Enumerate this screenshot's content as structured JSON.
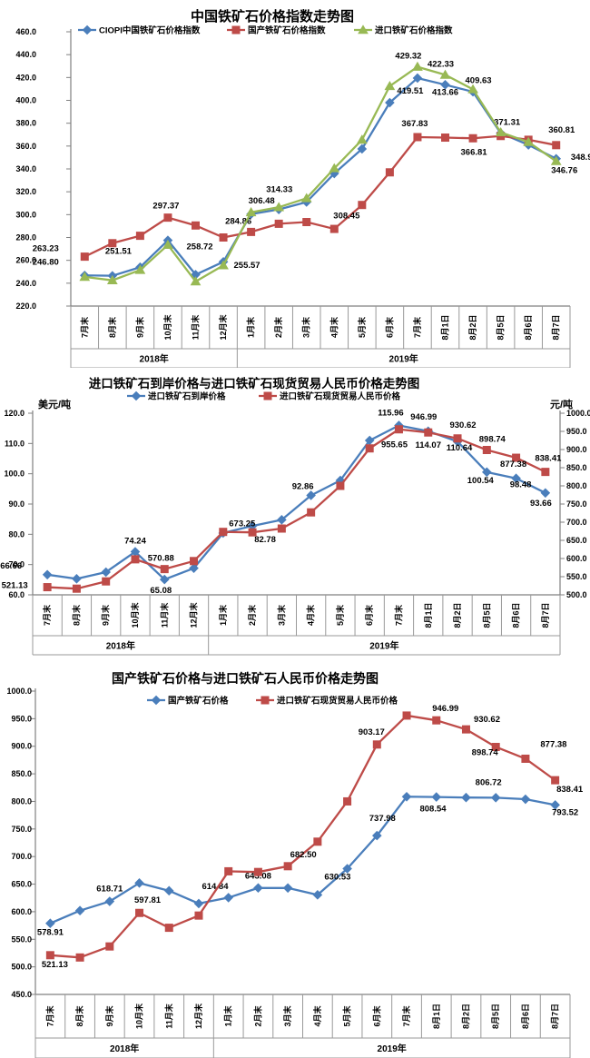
{
  "page": {
    "background": "#FFFFFF",
    "axis_color": "#808080",
    "cell_border_color": "#999999",
    "label_color": "#000000"
  },
  "chart_data": [
    {
      "type": "line",
      "title": "中国铁矿石价格指数走势图",
      "categories": [
        "7月末",
        "8月末",
        "9月末",
        "10月末",
        "11月末",
        "12月末",
        "1月末",
        "2月末",
        "3月末",
        "4月末",
        "5月末",
        "6月末",
        "7月末",
        "8月1日",
        "8月2日",
        "8月5日",
        "8月6日",
        "8月7日"
      ],
      "groups": [
        {
          "label": "2018年",
          "span": 6
        },
        {
          "label": "2019年",
          "span": 12
        }
      ],
      "y_axis": {
        "min": 220,
        "max": 460,
        "step": 20
      },
      "grid": "off",
      "legend_position": "top",
      "series": [
        {
          "name": "CIOPI中国铁矿石价格指数",
          "color": "#4A7EBB",
          "marker": "diamond",
          "axis": "left",
          "values": [
            246.8,
            246.5,
            254.0,
            277.5,
            247.5,
            258.72,
            300.5,
            304.5,
            311.0,
            336.0,
            357.5,
            398.0,
            419.51,
            413.66,
            407.5,
            371.31,
            361.0,
            348.9
          ],
          "point_labels": [
            [
              0,
              "246.80",
              -43,
              -12
            ],
            [
              5,
              "258.72",
              -26,
              -14
            ],
            [
              12,
              "419.51",
              -8,
              17
            ],
            [
              13,
              "413.66",
              0,
              11
            ],
            [
              15,
              "371.31",
              7,
              -9
            ],
            [
              17,
              "348.9",
              28,
              1
            ]
          ]
        },
        {
          "name": "国产铁矿石价格指数",
          "color": "#BE4B48",
          "marker": "square",
          "axis": "left",
          "values": [
            263.23,
            275.0,
            281.5,
            297.37,
            290.5,
            280.0,
            284.86,
            292.0,
            293.5,
            287.5,
            308.45,
            337.0,
            367.83,
            367.4,
            366.81,
            368.8,
            365.5,
            360.81
          ],
          "point_labels": [
            [
              0,
              "263.23",
              -43,
              -6
            ],
            [
              3,
              "297.37",
              -2,
              -10
            ],
            [
              6,
              "284.86",
              -14,
              -9
            ],
            [
              10,
              "308.45",
              -17,
              15
            ],
            [
              12,
              "367.83",
              -3,
              -12
            ],
            [
              14,
              "366.81",
              1,
              18
            ],
            [
              17,
              "360.81",
              6,
              -14
            ]
          ]
        },
        {
          "name": "进口铁矿石价格指数",
          "color": "#98B954",
          "marker": "triangle",
          "axis": "left",
          "values": [
            245.5,
            242.5,
            251.51,
            273.5,
            241.5,
            255.57,
            302.0,
            306.48,
            314.33,
            340.5,
            365.5,
            412.5,
            429.32,
            422.33,
            409.63,
            372.0,
            363.5,
            346.76
          ],
          "point_labels": [
            [
              2,
              "251.51",
              -24,
              -18
            ],
            [
              5,
              "255.57",
              26,
              3
            ],
            [
              7,
              "306.48",
              -19,
              -4
            ],
            [
              8,
              "314.33",
              -30,
              -7
            ],
            [
              12,
              "429.32",
              -10,
              -9
            ],
            [
              13,
              "422.33",
              -5,
              -9
            ],
            [
              14,
              "409.63",
              6,
              -7
            ],
            [
              17,
              "346.76",
              9,
              13
            ]
          ]
        }
      ]
    },
    {
      "type": "line",
      "title": "进口铁矿石到岸价格与进口铁矿石现货贸易人民币价格走势图",
      "unit_left": "美元/吨",
      "unit_right": "元/吨",
      "categories": [
        "7月末",
        "8月末",
        "9月末",
        "10月末",
        "11月末",
        "12月末",
        "1月末",
        "2月末",
        "3月末",
        "4月末",
        "5月末",
        "6月末",
        "7月末",
        "8月1日",
        "8月2日",
        "8月5日",
        "8月6日",
        "8月7日"
      ],
      "groups": [
        {
          "label": "2018年",
          "span": 6
        },
        {
          "label": "2019年",
          "span": 12
        }
      ],
      "y_axis": {
        "min": 60,
        "max": 120,
        "step": 10
      },
      "y2_axis": {
        "min": 500,
        "max": 1000,
        "step": 50
      },
      "grid": "off",
      "legend_position": "top",
      "series": [
        {
          "name": "进口铁矿石到岸价格",
          "color": "#4A7EBB",
          "marker": "diamond",
          "axis": "left",
          "values": [
            66.66,
            65.3,
            67.5,
            74.24,
            65.08,
            68.8,
            80.4,
            82.78,
            84.8,
            92.86,
            97.8,
            111.0,
            115.96,
            114.07,
            110.64,
            100.54,
            98.48,
            93.66
          ],
          "point_labels": [
            [
              0,
              "66.66",
              -40,
              -7
            ],
            [
              3,
              "74.24",
              0,
              -9
            ],
            [
              4,
              "65.08",
              -4,
              15
            ],
            [
              7,
              "82.78",
              14,
              18
            ],
            [
              9,
              "92.86",
              -9,
              -7
            ],
            [
              12,
              "115.96",
              -9,
              -11
            ],
            [
              13,
              "114.07",
              0,
              18
            ],
            [
              14,
              "110.64",
              2,
              10
            ],
            [
              15,
              "100.54",
              -7,
              12
            ],
            [
              16,
              "98.48",
              5,
              10
            ],
            [
              17,
              "93.66",
              -5,
              14
            ]
          ]
        },
        {
          "name": "进口铁矿石现货贸易人民币价格",
          "color": "#BE4B48",
          "marker": "square",
          "axis": "right",
          "values": [
            521.13,
            517.0,
            537.0,
            597.81,
            570.88,
            593.0,
            673.25,
            672.0,
            682.5,
            727.0,
            800.0,
            903.17,
            955.65,
            946.99,
            930.62,
            898.74,
            877.38,
            838.41
          ],
          "point_labels": [
            [
              0,
              "521.13",
              -36,
              1
            ],
            [
              4,
              "570.88",
              -4,
              -9
            ],
            [
              6,
              "673.25",
              21,
              -6
            ],
            [
              12,
              "955.65",
              -5,
              20
            ],
            [
              13,
              "946.99",
              -5,
              -14
            ],
            [
              14,
              "930.62",
              6,
              -12
            ],
            [
              15,
              "898.74",
              6,
              -9
            ],
            [
              16,
              "877.38",
              -3,
              10
            ],
            [
              17,
              "838.41",
              3,
              -12
            ]
          ]
        }
      ]
    },
    {
      "type": "line",
      "title": "国产铁矿石价格与进口铁矿石人民币价格走势图",
      "categories": [
        "7月末",
        "8月末",
        "9月末",
        "10月末",
        "11月末",
        "12月末",
        "1月末",
        "2月末",
        "3月末",
        "4月末",
        "5月末",
        "6月末",
        "7月末",
        "8月1日",
        "8月2日",
        "8月5日",
        "8月6日",
        "8月7日"
      ],
      "groups": [
        {
          "label": "2018年",
          "span": 6
        },
        {
          "label": "2019年",
          "span": 12
        }
      ],
      "y_axis": {
        "min": 450,
        "max": 1000,
        "step": 50
      },
      "grid": "off",
      "legend_position": "top",
      "series": [
        {
          "name": "国产铁矿石价格",
          "color": "#4A7EBB",
          "marker": "diamond",
          "axis": "left",
          "values": [
            578.91,
            602.0,
            618.71,
            652.0,
            638.0,
            614.84,
            625.5,
            643.08,
            643.0,
            630.53,
            678.0,
            737.98,
            808.54,
            808.0,
            807.0,
            806.72,
            804.0,
            793.52
          ],
          "point_labels": [
            [
              0,
              "578.91",
              0,
              13
            ],
            [
              2,
              "618.71",
              0,
              -11
            ],
            [
              5,
              "614.84",
              18,
              -16
            ],
            [
              7,
              "643.08",
              0,
              -10
            ],
            [
              9,
              "630.53",
              22,
              -17
            ],
            [
              11,
              "737.98",
              6,
              -16
            ],
            [
              12,
              "808.54",
              29,
              16
            ],
            [
              15,
              "806.72",
              -8,
              -14
            ],
            [
              17,
              "793.52",
              11,
              11
            ]
          ]
        },
        {
          "name": "进口铁矿石现货贸易人民币价格",
          "color": "#BE4B48",
          "marker": "square",
          "axis": "left",
          "values": [
            521.13,
            517.0,
            537.0,
            597.81,
            570.88,
            593.0,
            673.25,
            672.0,
            682.5,
            727.0,
            800.0,
            903.17,
            955.65,
            946.99,
            930.62,
            898.74,
            877.38,
            838.41
          ],
          "point_labels": [
            [
              0,
              "521.13",
              5,
              13
            ],
            [
              3,
              "597.81",
              9,
              -11
            ],
            [
              8,
              "682.50",
              17,
              -10
            ],
            [
              11,
              "903.17",
              -6,
              -11
            ],
            [
              13,
              "946.99",
              10,
              -10
            ],
            [
              14,
              "930.62",
              23,
              -8
            ],
            [
              15,
              "898.74",
              -12,
              9
            ],
            [
              16,
              "877.38",
              31,
              -13
            ],
            [
              17,
              "838.41",
              16,
              13
            ]
          ]
        }
      ]
    }
  ]
}
